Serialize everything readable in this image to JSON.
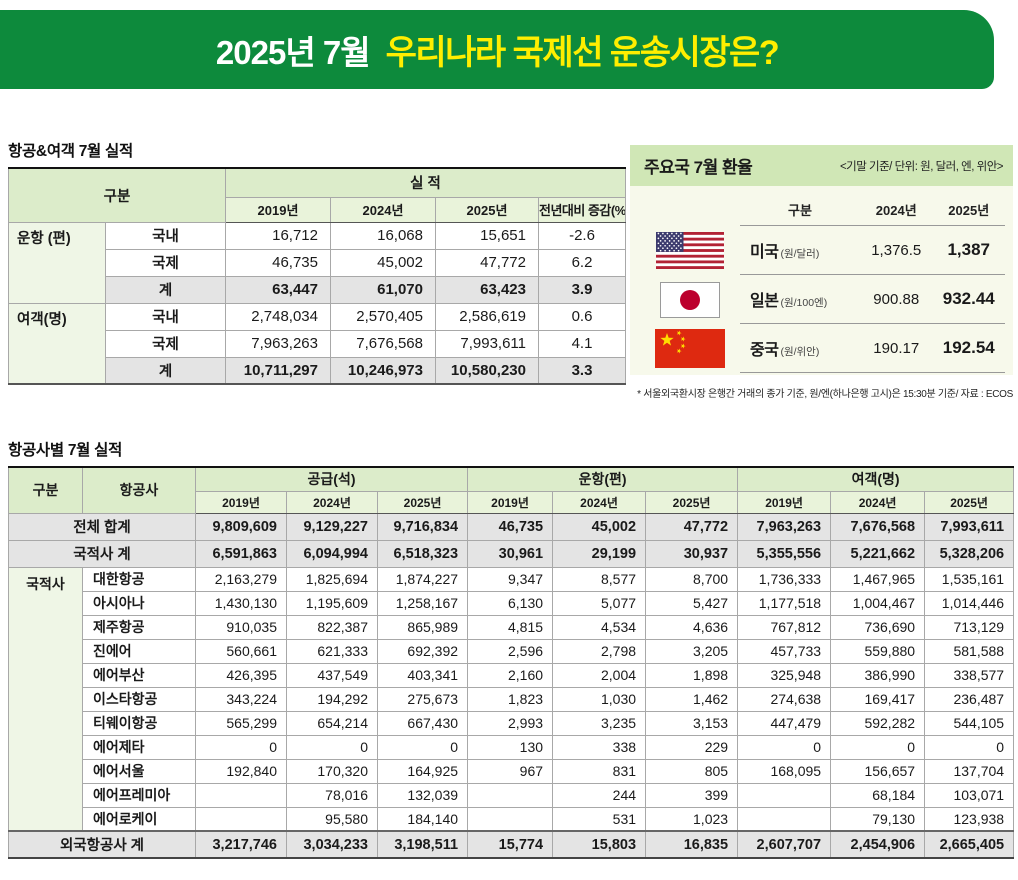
{
  "banner": {
    "period": "2025년 7월",
    "title": "우리나라 국제선 운송시장은?"
  },
  "traffic": {
    "section_title": "항공&여객 7월 실적",
    "col_gubun": "구분",
    "col_siljeok": "실 적",
    "years": [
      "2019년",
      "2024년",
      "2025년"
    ],
    "col_yoy": "전년대비 증감(%)",
    "groups": [
      {
        "label": "운항 (편)",
        "rows": [
          {
            "type": "국내",
            "values": [
              "16,712",
              "16,068",
              "15,651",
              "-2.6"
            ],
            "total": false
          },
          {
            "type": "국제",
            "values": [
              "46,735",
              "45,002",
              "47,772",
              "6.2"
            ],
            "total": false
          },
          {
            "type": "계",
            "values": [
              "63,447",
              "61,070",
              "63,423",
              "3.9"
            ],
            "total": true
          }
        ]
      },
      {
        "label": "여객(명)",
        "rows": [
          {
            "type": "국내",
            "values": [
              "2,748,034",
              "2,570,405",
              "2,586,619",
              "0.6"
            ],
            "total": false
          },
          {
            "type": "국제",
            "values": [
              "7,963,263",
              "7,676,568",
              "7,993,611",
              "4.1"
            ],
            "total": false
          },
          {
            "type": "계",
            "values": [
              "10,711,297",
              "10,246,973",
              "10,580,230",
              "3.3"
            ],
            "total": true
          }
        ]
      }
    ]
  },
  "exchange": {
    "title": "주요국 7월 환율",
    "subtitle": "<기말 기준/ 단위: 원, 달러, 엔, 위안>",
    "columns": [
      "구분",
      "2024년",
      "2025년"
    ],
    "rows": [
      {
        "flag": "us-flag",
        "country": "미국",
        "unit": "(원/달러)",
        "y2024": "1,376.5",
        "y2025": "1,387"
      },
      {
        "flag": "japan-flag",
        "country": "일본",
        "unit": "(원/100엔)",
        "y2024": "900.88",
        "y2025": "932.44"
      },
      {
        "flag": "china-flag",
        "country": "중국",
        "unit": "(원/위안)",
        "y2024": "190.17",
        "y2025": "192.54"
      }
    ],
    "footnote": "* 서울외국환시장 은행간 거래의 종가 기준, 원/엔(하나은행 고시)은 15:30분 기준/ 자료 : ECOS"
  },
  "airlines_table": {
    "section_title": "항공사별 7월 실적",
    "col_gubun": "구분",
    "col_airline": "항공사",
    "groups": [
      "공급(석)",
      "운항(편)",
      "여객(명)"
    ],
    "years": [
      "2019년",
      "2024년",
      "2025년"
    ],
    "category_label": "국적사",
    "rows": [
      {
        "name": "전체 합계",
        "kind": "total",
        "values": [
          "9,809,609",
          "9,129,227",
          "9,716,834",
          "46,735",
          "45,002",
          "47,772",
          "7,963,263",
          "7,676,568",
          "7,993,611"
        ]
      },
      {
        "name": "국적사 계",
        "kind": "total",
        "values": [
          "6,591,863",
          "6,094,994",
          "6,518,323",
          "30,961",
          "29,199",
          "30,937",
          "5,355,556",
          "5,221,662",
          "5,328,206"
        ]
      },
      {
        "name": "대한항공",
        "kind": "airline",
        "values": [
          "2,163,279",
          "1,825,694",
          "1,874,227",
          "9,347",
          "8,577",
          "8,700",
          "1,736,333",
          "1,467,965",
          "1,535,161"
        ]
      },
      {
        "name": "아시아나",
        "kind": "airline",
        "values": [
          "1,430,130",
          "1,195,609",
          "1,258,167",
          "6,130",
          "5,077",
          "5,427",
          "1,177,518",
          "1,004,467",
          "1,014,446"
        ]
      },
      {
        "name": "제주항공",
        "kind": "airline",
        "values": [
          "910,035",
          "822,387",
          "865,989",
          "4,815",
          "4,534",
          "4,636",
          "767,812",
          "736,690",
          "713,129"
        ]
      },
      {
        "name": "진에어",
        "kind": "airline",
        "values": [
          "560,661",
          "621,333",
          "692,392",
          "2,596",
          "2,798",
          "3,205",
          "457,733",
          "559,880",
          "581,588"
        ]
      },
      {
        "name": "에어부산",
        "kind": "airline",
        "values": [
          "426,395",
          "437,549",
          "403,341",
          "2,160",
          "2,004",
          "1,898",
          "325,948",
          "386,990",
          "338,577"
        ]
      },
      {
        "name": "이스타항공",
        "kind": "airline",
        "values": [
          "343,224",
          "194,292",
          "275,673",
          "1,823",
          "1,030",
          "1,462",
          "274,638",
          "169,417",
          "236,487"
        ]
      },
      {
        "name": "티웨이항공",
        "kind": "airline",
        "values": [
          "565,299",
          "654,214",
          "667,430",
          "2,993",
          "3,235",
          "3,153",
          "447,479",
          "592,282",
          "544,105"
        ]
      },
      {
        "name": "에어제타",
        "kind": "airline",
        "values": [
          "0",
          "0",
          "0",
          "130",
          "338",
          "229",
          "0",
          "0",
          "0"
        ]
      },
      {
        "name": "에어서울",
        "kind": "airline",
        "values": [
          "192,840",
          "170,320",
          "164,925",
          "967",
          "831",
          "805",
          "168,095",
          "156,657",
          "137,704"
        ]
      },
      {
        "name": "에어프레미아",
        "kind": "airline",
        "values": [
          "",
          "78,016",
          "132,039",
          "",
          "244",
          "399",
          "",
          "68,184",
          "103,071"
        ]
      },
      {
        "name": "에어로케이",
        "kind": "airline",
        "values": [
          "",
          "95,580",
          "184,140",
          "",
          "531",
          "1,023",
          "",
          "79,130",
          "123,938"
        ]
      },
      {
        "name": "외국항공사 계",
        "kind": "total",
        "values": [
          "3,217,746",
          "3,034,233",
          "3,198,511",
          "15,774",
          "15,803",
          "16,835",
          "2,607,707",
          "2,454,906",
          "2,665,405"
        ]
      }
    ]
  },
  "icons": [
    "us-flag",
    "japan-flag",
    "china-flag"
  ],
  "colors": {
    "banner_green": "#0d8a3c",
    "title_yellow": "#ffee00",
    "header_green": "#dcecca",
    "years_green": "#e9f3da",
    "category_green": "#eff6e6",
    "total_gray": "#e4e4e4",
    "fx_band_green": "#d0e7b6",
    "us_flag_red": "#b22234",
    "us_flag_blue": "#3c3b6e",
    "japan_flag_red": "#bc002d",
    "china_flag_red": "#de2910",
    "china_flag_yellow": "#ffde00"
  }
}
